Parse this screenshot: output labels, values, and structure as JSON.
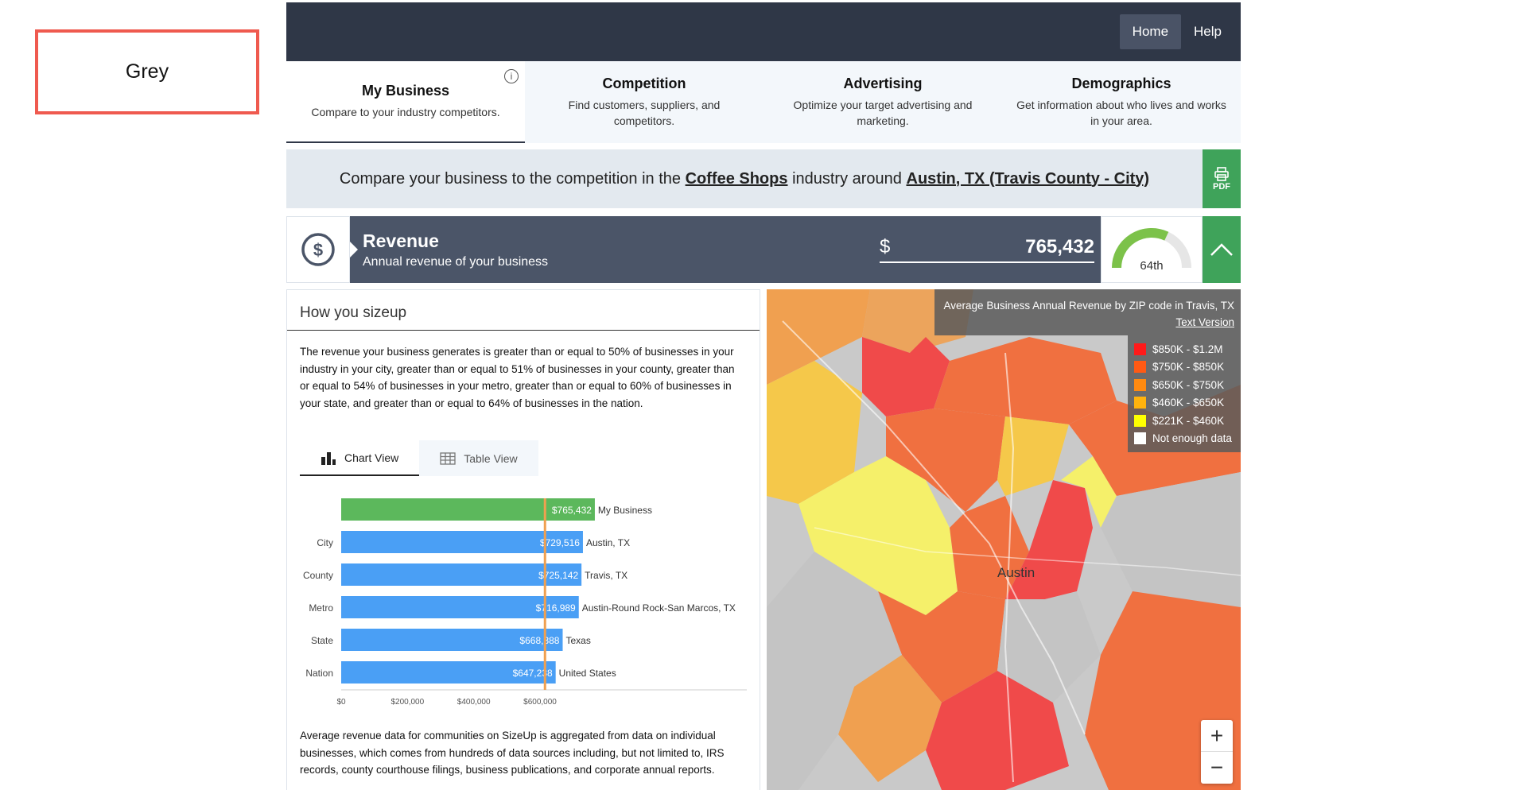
{
  "side_box": {
    "label": "Grey"
  },
  "topbar": {
    "home": "Home",
    "help": "Help"
  },
  "tabs": [
    {
      "title": "My Business",
      "sub": "Compare to your industry competitors."
    },
    {
      "title": "Competition",
      "sub": "Find customers, suppliers, and competitors."
    },
    {
      "title": "Advertising",
      "sub": "Optimize your target advertising and marketing."
    },
    {
      "title": "Demographics",
      "sub": "Get information about who lives and works in your area."
    }
  ],
  "compare": {
    "prefix": "Compare your business to the competition in the",
    "industry": "Coffee Shops",
    "middle": "industry around",
    "location": "Austin, TX (Travis County - City)",
    "pdf_label": "PDF"
  },
  "revenue": {
    "title": "Revenue",
    "sub": "Annual revenue of your business",
    "currency": "$",
    "value": "765,432",
    "percentile": "64th",
    "percentile_value": 64
  },
  "sizeup": {
    "header": "How you sizeup",
    "description": "The revenue your business generates is greater than or equal to 50% of businesses in your industry in your city, greater than or equal to 51% of businesses in your county, greater than or equal to 54% of businesses in your metro, greater than or equal to 60% of businesses in your state, and greater than or equal to 64% of businesses in the nation.",
    "chart_view": "Chart View",
    "table_view": "Table View",
    "note": "Average revenue data for communities on SizeUp is aggregated from data on individual businesses, which comes from hundreds of data sources including, but not limited to, IRS records, county courthouse filings, business publications, and corporate annual reports."
  },
  "chart_data": {
    "type": "bar",
    "categories": [
      "",
      "City",
      "County",
      "Metro",
      "State",
      "Nation"
    ],
    "places": [
      "My Business",
      "Austin, TX",
      "Travis, TX",
      "Austin-Round Rock-San Marcos, TX",
      "Texas",
      "United States"
    ],
    "values": [
      765432,
      729516,
      725142,
      716989,
      668388,
      647238
    ],
    "value_labels": [
      "$765,432",
      "$729,516",
      "$725,142",
      "$716,989",
      "$668,388",
      "$647,238"
    ],
    "colors": [
      "#5cb85c",
      "#4a9ff5",
      "#4a9ff5",
      "#4a9ff5",
      "#4a9ff5",
      "#4a9ff5"
    ],
    "x_ticks": [
      "$0",
      "$200,000",
      "$400,000",
      "$600,000"
    ],
    "x_tick_values": [
      0,
      200000,
      400000,
      600000
    ],
    "reference_line": 615000,
    "xlim": [
      0,
      1200000
    ]
  },
  "map": {
    "title": "Average Business Annual Revenue by ZIP code in Travis, TX",
    "text_version": "Text Version",
    "legend": [
      {
        "label": "$850K - $1.2M",
        "color": "#ff1a1a"
      },
      {
        "label": "$750K - $850K",
        "color": "#ff5a14"
      },
      {
        "label": "$650K - $750K",
        "color": "#ff8a10"
      },
      {
        "label": "$460K - $650K",
        "color": "#ffb30d"
      },
      {
        "label": "$221K - $460K",
        "color": "#ffff00"
      },
      {
        "label": "Not enough data",
        "color": "#ffffff"
      }
    ],
    "city_label": "Austin",
    "zoom_in": "+",
    "zoom_out": "−"
  }
}
